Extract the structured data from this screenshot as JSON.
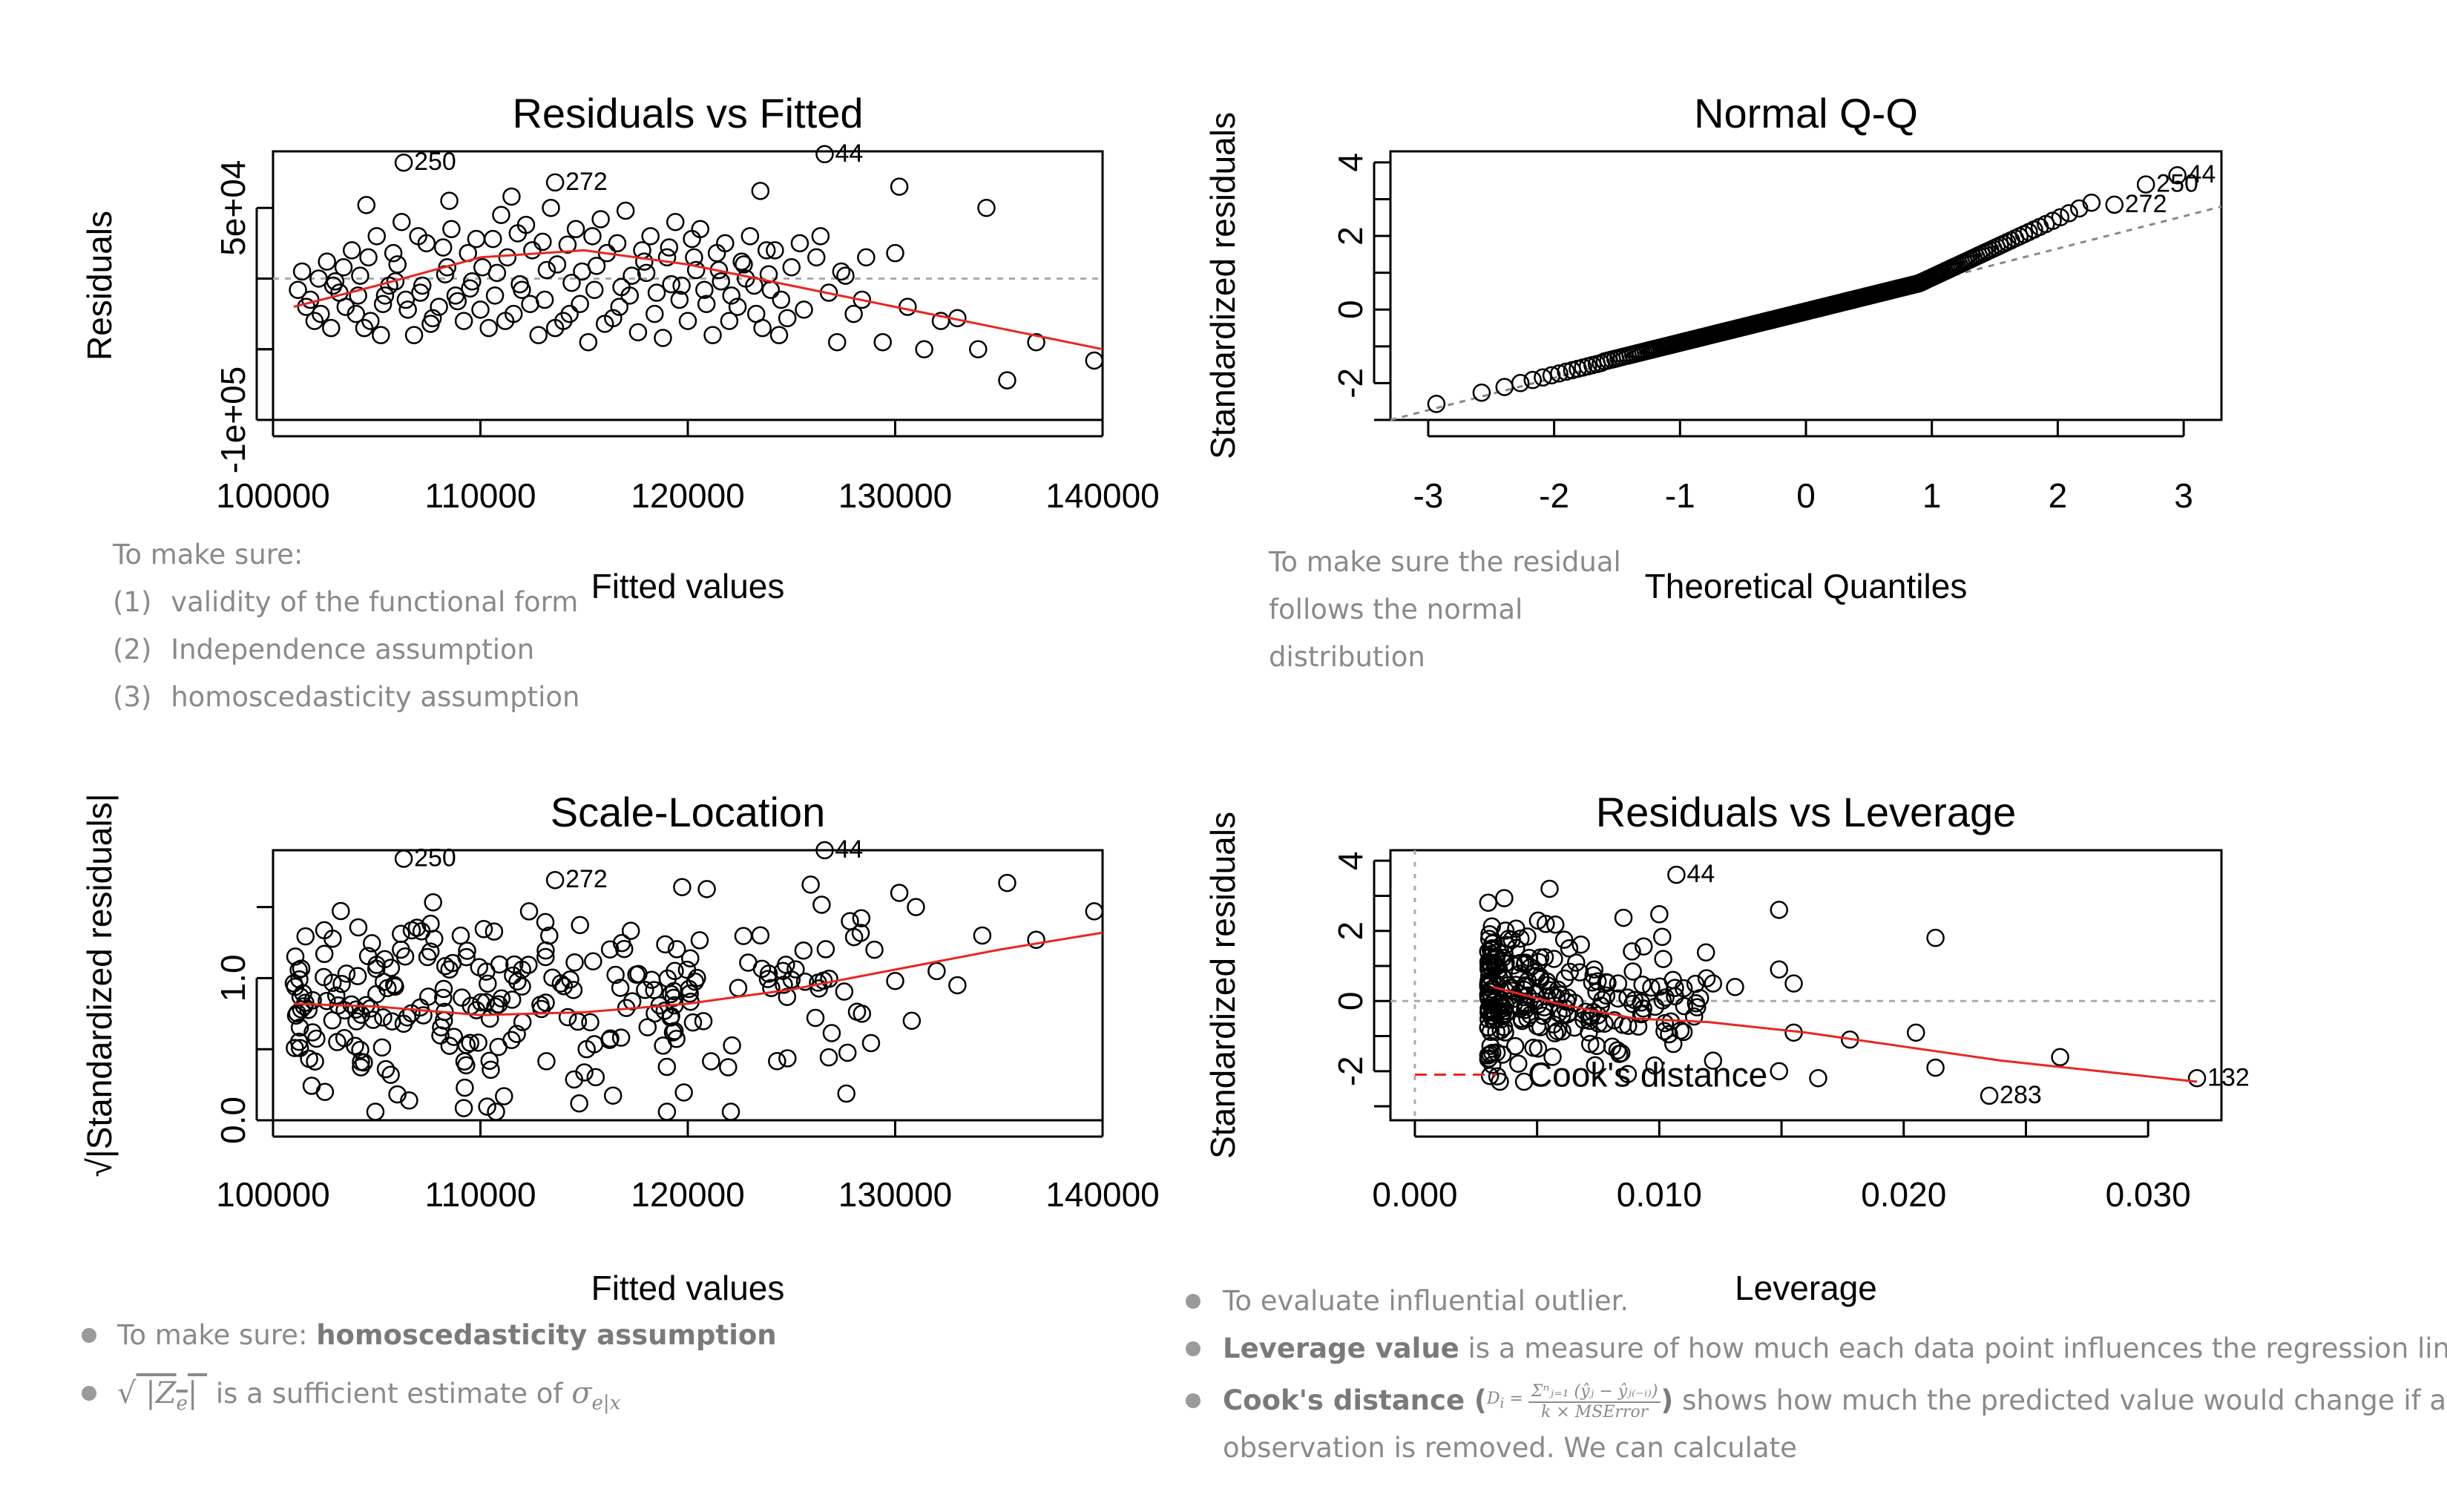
{
  "chart_data": [
    {
      "type": "scatter",
      "title": "Residuals vs Fitted",
      "xlabel": "Fitted values",
      "ylabel": "Residuals",
      "xlim": [
        100000,
        140000
      ],
      "ylim": [
        -100000,
        90000
      ],
      "xticks": [
        100000,
        110000,
        120000,
        130000,
        140000
      ],
      "xtick_labels": [
        "100000",
        "110000",
        "120000",
        "130000",
        "140000"
      ],
      "yticks": [
        -100000,
        50000
      ],
      "ytick_labels": [
        "-1e+05",
        "5e+04"
      ],
      "labeled_points": [
        {
          "x": 106300,
          "y": 82000,
          "label": "250"
        },
        {
          "x": 113600,
          "y": 68000,
          "label": "272"
        },
        {
          "x": 126600,
          "y": 88000,
          "label": "44"
        }
      ],
      "points": [
        [
          101200,
          -8000
        ],
        [
          101800,
          -15000
        ],
        [
          102300,
          -25000
        ],
        [
          102900,
          -5000
        ],
        [
          103500,
          -20000
        ],
        [
          104100,
          -12000
        ],
        [
          104700,
          -30000
        ],
        [
          105300,
          -18000
        ],
        [
          105900,
          -2000
        ],
        [
          106500,
          -22000
        ],
        [
          107100,
          -10000
        ],
        [
          107700,
          -28000
        ],
        [
          108300,
          3000
        ],
        [
          108900,
          -16000
        ],
        [
          109500,
          -7000
        ],
        [
          110100,
          8000
        ],
        [
          110700,
          -12000
        ],
        [
          111300,
          15000
        ],
        [
          111900,
          -4000
        ],
        [
          112500,
          20000
        ],
        [
          113100,
          -15000
        ],
        [
          113700,
          10000
        ],
        [
          114300,
          -25000
        ],
        [
          114900,
          5000
        ],
        [
          115500,
          -8000
        ],
        [
          116100,
          18000
        ],
        [
          116700,
          -20000
        ],
        [
          117300,
          2000
        ],
        [
          117900,
          12000
        ],
        [
          118500,
          -10000
        ],
        [
          119100,
          22000
        ],
        [
          119700,
          -5000
        ],
        [
          120300,
          15000
        ],
        [
          120900,
          -18000
        ],
        [
          121500,
          6000
        ],
        [
          122100,
          -12000
        ],
        [
          122700,
          10000
        ],
        [
          123300,
          -25000
        ],
        [
          123900,
          3000
        ],
        [
          124500,
          -15000
        ],
        [
          101400,
          5000
        ],
        [
          102000,
          -30000
        ],
        [
          102600,
          12000
        ],
        [
          103200,
          -10000
        ],
        [
          103800,
          20000
        ],
        [
          104400,
          -35000
        ],
        [
          105000,
          30000
        ],
        [
          105600,
          -5000
        ],
        [
          106200,
          40000
        ],
        [
          106800,
          -40000
        ],
        [
          107400,
          25000
        ],
        [
          108000,
          -20000
        ],
        [
          108600,
          35000
        ],
        [
          109200,
          -30000
        ],
        [
          109800,
          28000
        ],
        [
          110400,
          -35000
        ],
        [
          111000,
          45000
        ],
        [
          111600,
          -25000
        ],
        [
          112200,
          38000
        ],
        [
          112800,
          -40000
        ],
        [
          113400,
          50000
        ],
        [
          114000,
          -30000
        ],
        [
          114600,
          35000
        ],
        [
          115200,
          -45000
        ],
        [
          115800,
          42000
        ],
        [
          116400,
          -28000
        ],
        [
          117000,
          48000
        ],
        [
          117600,
          -38000
        ],
        [
          118200,
          30000
        ],
        [
          118800,
          -42000
        ],
        [
          119400,
          40000
        ],
        [
          120000,
          -30000
        ],
        [
          120600,
          35000
        ],
        [
          121200,
          -40000
        ],
        [
          121800,
          25000
        ],
        [
          122400,
          -20000
        ],
        [
          123000,
          30000
        ],
        [
          123600,
          -35000
        ],
        [
          124200,
          20000
        ],
        [
          124800,
          -28000
        ],
        [
          101600,
          -20000
        ],
        [
          102200,
          0
        ],
        [
          102800,
          -35000
        ],
        [
          103400,
          8000
        ],
        [
          104000,
          -25000
        ],
        [
          104600,
          15000
        ],
        [
          105200,
          -40000
        ],
        [
          105800,
          18000
        ],
        [
          106400,
          -15000
        ],
        [
          107000,
          30000
        ],
        [
          107600,
          -32000
        ],
        [
          108200,
          22000
        ],
        [
          108800,
          -12000
        ],
        [
          109400,
          18000
        ],
        [
          110000,
          -22000
        ],
        [
          110600,
          28000
        ],
        [
          111200,
          -30000
        ],
        [
          111800,
          32000
        ],
        [
          112400,
          -18000
        ],
        [
          113000,
          26000
        ],
        [
          113600,
          -35000
        ],
        [
          114200,
          24000
        ],
        [
          114800,
          -18000
        ],
        [
          115400,
          30000
        ],
        [
          116000,
          -32000
        ],
        [
          116600,
          25000
        ],
        [
          117200,
          -12000
        ],
        [
          117800,
          20000
        ],
        [
          118400,
          -25000
        ],
        [
          119000,
          15000
        ],
        [
          119600,
          -15000
        ],
        [
          120200,
          28000
        ],
        [
          120800,
          -8000
        ],
        [
          121400,
          18000
        ],
        [
          122000,
          -30000
        ],
        [
          122600,
          12000
        ],
        [
          123200,
          -5000
        ],
        [
          123800,
          20000
        ],
        [
          124400,
          -40000
        ],
        [
          125000,
          8000
        ],
        [
          125600,
          -22000
        ],
        [
          126200,
          15000
        ],
        [
          126800,
          -10000
        ],
        [
          127400,
          5000
        ],
        [
          128000,
          -25000
        ],
        [
          128600,
          15000
        ],
        [
          129400,
          -45000
        ],
        [
          130000,
          18000
        ],
        [
          130600,
          -20000
        ],
        [
          131400,
          -50000
        ],
        [
          132200,
          -30000
        ],
        [
          133000,
          -28000
        ],
        [
          134000,
          -50000
        ],
        [
          135400,
          -72000
        ],
        [
          136800,
          -45000
        ],
        [
          139600,
          -58000
        ],
        [
          125400,
          25000
        ],
        [
          126400,
          30000
        ],
        [
          127200,
          -45000
        ],
        [
          128400,
          -15000
        ],
        [
          103000,
          -2000
        ],
        [
          104200,
          2000
        ],
        [
          105400,
          -12000
        ],
        [
          106000,
          10000
        ],
        [
          107200,
          -5000
        ],
        [
          108400,
          8000
        ],
        [
          109600,
          -2000
        ],
        [
          110800,
          4000
        ],
        [
          112000,
          -8000
        ],
        [
          113200,
          6000
        ],
        [
          114400,
          -3000
        ],
        [
          115600,
          9000
        ],
        [
          116800,
          -6000
        ],
        [
          118000,
          4000
        ],
        [
          119200,
          -4000
        ],
        [
          120400,
          6000
        ],
        [
          121600,
          -2000
        ],
        [
          122800,
          0
        ],
        [
          124000,
          -8000
        ],
        [
          127600,
          2000
        ],
        [
          130200,
          65000
        ],
        [
          134400,
          50000
        ],
        [
          123500,
          62000
        ],
        [
          108500,
          55000
        ],
        [
          111500,
          58000
        ],
        [
          104500,
          52000
        ]
      ],
      "smooth_line": [
        [
          101000,
          -20000
        ],
        [
          105000,
          -5000
        ],
        [
          110000,
          15000
        ],
        [
          115000,
          20000
        ],
        [
          120000,
          10000
        ],
        [
          125000,
          -5000
        ],
        [
          130000,
          -20000
        ],
        [
          135000,
          -35000
        ],
        [
          140000,
          -50000
        ]
      ],
      "reference_line_y": 0
    },
    {
      "type": "scatter",
      "title": "Normal Q-Q",
      "xlabel": "Theoretical Quantiles",
      "ylabel": "Standardized residuals",
      "xlim": [
        -3.3,
        3.3
      ],
      "ylim": [
        -3,
        4.3
      ],
      "xticks": [
        -3,
        -2,
        -1,
        0,
        1,
        2,
        3
      ],
      "xtick_labels": [
        "-3",
        "-2",
        "-1",
        "0",
        "1",
        "2",
        "3"
      ],
      "yticks": [
        -2,
        0,
        2,
        4
      ],
      "ytick_labels": [
        "-2",
        "0",
        "2",
        "4"
      ],
      "labeled_points": [
        {
          "x": 2.95,
          "y": 3.65,
          "label": "44"
        },
        {
          "x": 2.7,
          "y": 3.4,
          "label": "250"
        },
        {
          "x": 2.45,
          "y": 2.85,
          "label": "272"
        }
      ],
      "reference_line": [
        [
          -3.3,
          -3.0
        ],
        [
          3.3,
          2.8
        ]
      ]
    },
    {
      "type": "scatter",
      "title": "Scale-Location",
      "xlabel": "Fitted values",
      "ylabel": "√|Standardized residuals|",
      "xlim": [
        100000,
        140000
      ],
      "ylim": [
        0,
        1.9
      ],
      "xticks": [
        100000,
        110000,
        120000,
        130000,
        140000
      ],
      "xtick_labels": [
        "100000",
        "110000",
        "120000",
        "130000",
        "140000"
      ],
      "yticks": [
        0.0,
        1.0
      ],
      "ytick_labels": [
        "0.0",
        "1.0"
      ],
      "labeled_points": [
        {
          "x": 106300,
          "y": 1.84,
          "label": "250"
        },
        {
          "x": 113600,
          "y": 1.69,
          "label": "272"
        },
        {
          "x": 126600,
          "y": 1.9,
          "label": "44"
        }
      ],
      "smooth_line": [
        [
          101000,
          0.82
        ],
        [
          105000,
          0.8
        ],
        [
          110000,
          0.74
        ],
        [
          115000,
          0.76
        ],
        [
          120000,
          0.82
        ],
        [
          125000,
          0.92
        ],
        [
          130000,
          1.06
        ],
        [
          135000,
          1.2
        ],
        [
          140000,
          1.32
        ]
      ]
    },
    {
      "type": "scatter",
      "title": "Residuals vs Leverage",
      "xlabel": "Leverage",
      "ylabel": "Standardized residuals",
      "xlim": [
        -0.001,
        0.033
      ],
      "ylim": [
        -3.4,
        4.3
      ],
      "xticks": [
        0.0,
        0.01,
        0.02,
        0.03
      ],
      "xtick_labels": [
        "0.000",
        "0.010",
        "0.020",
        "0.030"
      ],
      "yticks": [
        -2,
        0,
        2,
        4
      ],
      "ytick_labels": [
        "-2",
        "0",
        "2",
        "4"
      ],
      "labeled_points": [
        {
          "x": 0.0107,
          "y": 3.6,
          "label": "44"
        },
        {
          "x": 0.0235,
          "y": -2.7,
          "label": "283"
        },
        {
          "x": 0.032,
          "y": -2.2,
          "label": "132"
        }
      ],
      "legend": "Cook's distance",
      "smooth_line": [
        [
          0.0032,
          0.4
        ],
        [
          0.006,
          -0.1
        ],
        [
          0.009,
          -0.5
        ],
        [
          0.012,
          -0.6
        ],
        [
          0.016,
          -0.9
        ],
        [
          0.02,
          -1.3
        ],
        [
          0.024,
          -1.7
        ],
        [
          0.028,
          -2.0
        ],
        [
          0.032,
          -2.3
        ]
      ]
    }
  ],
  "notes": {
    "rvf": {
      "intro": "To make sure:",
      "items": [
        {
          "num": "(1)",
          "text": "validity of the functional form"
        },
        {
          "num": "(2)",
          "text": "Independence assumption"
        },
        {
          "num": "(3)",
          "text": "homoscedasticity assumption"
        }
      ]
    },
    "qq": {
      "lines": [
        "To make sure the residual",
        "follows the normal",
        "distribution"
      ]
    },
    "sl": {
      "item1_prefix": "To make sure: ",
      "item1_bold": "homoscedasticity assumption",
      "item2_text": " is a sufficient estimate of ",
      "formula_inner": "|Z",
      "formula_sub": "e",
      "sigma": "σ",
      "sigma_sub": "e|x"
    },
    "rvl": {
      "item1": "To evaluate influential outlier.",
      "item2_bold": "Leverage value",
      "item2_rest": " is a measure of how much each data point influences the regression line.",
      "item3_bold": "Cook's distance",
      "item3_formula_lhs": "D",
      "item3_formula_lhs_sub": "i",
      "item3_numerator": "Σⁿⱼ₌₁ (ŷⱼ − ŷⱼ₍₋ᵢ₎)",
      "item3_denominator": "k × MSError",
      "item3_rest": " shows how much the predicted value would change if an",
      "item3_line2": "observation is removed. We can calculate"
    }
  }
}
